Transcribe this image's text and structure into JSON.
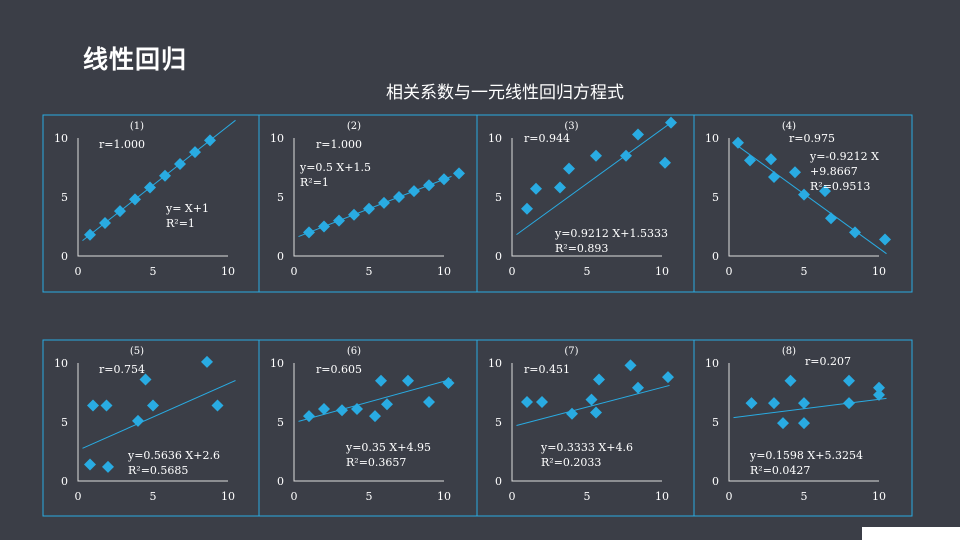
{
  "slide": {
    "title": "线性回归",
    "subtitle": "相关系数与一元线性回归方程式"
  },
  "colors": {
    "background": "#3b3e47",
    "accent": "#29abe2",
    "border": "#29abe2",
    "text": "#ffffff"
  },
  "chart_data": [
    {
      "type": "scatter",
      "label": "(1)",
      "xlim": [
        0,
        10
      ],
      "ylim": [
        0,
        10
      ],
      "xticks": [
        0,
        5,
        10
      ],
      "yticks": [
        0,
        5,
        10
      ],
      "r": "r=1.000",
      "equation": [
        "y= X+1",
        "R²=1"
      ],
      "line": {
        "slope": 1,
        "intercept": 1
      },
      "points": [
        [
          0.8,
          1.8
        ],
        [
          1.8,
          2.8
        ],
        [
          2.8,
          3.8
        ],
        [
          3.8,
          4.8
        ],
        [
          4.8,
          5.8
        ],
        [
          5.8,
          6.8
        ],
        [
          6.8,
          7.8
        ],
        [
          7.8,
          8.8
        ],
        [
          8.8,
          9.8
        ]
      ]
    },
    {
      "type": "scatter",
      "label": "(2)",
      "xlim": [
        0,
        10
      ],
      "ylim": [
        0,
        10
      ],
      "xticks": [
        0,
        5,
        10
      ],
      "yticks": [
        0,
        5,
        10
      ],
      "r": "r=1.000",
      "equation": [
        "y=0.5 X+1.5",
        "R²=1"
      ],
      "line": {
        "slope": 0.5,
        "intercept": 1.5
      },
      "points": [
        [
          1,
          2
        ],
        [
          2,
          2.5
        ],
        [
          3,
          3
        ],
        [
          4,
          3.5
        ],
        [
          5,
          4
        ],
        [
          6,
          4.5
        ],
        [
          7,
          5
        ],
        [
          8,
          5.5
        ],
        [
          9,
          6
        ],
        [
          10,
          6.5
        ],
        [
          11,
          7
        ]
      ]
    },
    {
      "type": "scatter",
      "label": "(3)",
      "xlim": [
        0,
        10
      ],
      "ylim": [
        0,
        10
      ],
      "xticks": [
        0,
        5,
        10
      ],
      "yticks": [
        0,
        5,
        10
      ],
      "r": "r=0.944",
      "equation": [
        "y=0.9212 X+1.5333",
        "R²=0.893"
      ],
      "line": {
        "slope": 0.9212,
        "intercept": 1.5333
      },
      "points": [
        [
          1,
          4
        ],
        [
          1.6,
          5.7
        ],
        [
          3.2,
          5.8
        ],
        [
          3.8,
          7.4
        ],
        [
          5.6,
          8.5
        ],
        [
          7.6,
          8.5
        ],
        [
          8.4,
          10.3
        ],
        [
          10.2,
          7.9
        ],
        [
          10.6,
          11.3
        ]
      ]
    },
    {
      "type": "scatter",
      "label": "(4)",
      "xlim": [
        0,
        10
      ],
      "ylim": [
        0,
        10
      ],
      "xticks": [
        0,
        5,
        10
      ],
      "yticks": [
        0,
        5,
        10
      ],
      "r": "r=0.975",
      "equation": [
        "y=-0.9212 X",
        "+9.8667",
        "R²=0.9513"
      ],
      "line": {
        "slope": -0.9212,
        "intercept": 9.8667
      },
      "points": [
        [
          0.6,
          9.6
        ],
        [
          1.4,
          8.1
        ],
        [
          2.8,
          8.2
        ],
        [
          3,
          6.7
        ],
        [
          4.4,
          7.1
        ],
        [
          5,
          5.2
        ],
        [
          6.4,
          5.5
        ],
        [
          6.8,
          3.2
        ],
        [
          8.4,
          2
        ],
        [
          10.4,
          1.4
        ]
      ]
    },
    {
      "type": "scatter",
      "label": "(5)",
      "xlim": [
        0,
        10
      ],
      "ylim": [
        0,
        10
      ],
      "xticks": [
        0,
        5,
        10
      ],
      "yticks": [
        0,
        5,
        10
      ],
      "r": "r=0.754",
      "equation": [
        "y=0.5636 X+2.6",
        "R²=0.5685"
      ],
      "line": {
        "slope": 0.5636,
        "intercept": 2.6
      },
      "points": [
        [
          0.8,
          1.4
        ],
        [
          1,
          6.4
        ],
        [
          1.9,
          6.4
        ],
        [
          2,
          1.2
        ],
        [
          4,
          5.1
        ],
        [
          4.5,
          8.6
        ],
        [
          5,
          6.4
        ],
        [
          8.6,
          10.1
        ],
        [
          9.3,
          6.4
        ]
      ]
    },
    {
      "type": "scatter",
      "label": "(6)",
      "xlim": [
        0,
        10
      ],
      "ylim": [
        0,
        10
      ],
      "xticks": [
        0,
        5,
        10
      ],
      "yticks": [
        0,
        5,
        10
      ],
      "r": "r=0.605",
      "equation": [
        "y=0.35 X+4.95",
        "R²=0.3657"
      ],
      "line": {
        "slope": 0.35,
        "intercept": 4.95
      },
      "points": [
        [
          1,
          5.5
        ],
        [
          2,
          6.1
        ],
        [
          3.2,
          6
        ],
        [
          4.2,
          6.1
        ],
        [
          5.4,
          5.5
        ],
        [
          5.8,
          8.5
        ],
        [
          6.2,
          6.5
        ],
        [
          7.6,
          8.5
        ],
        [
          9,
          6.7
        ],
        [
          10.3,
          8.3
        ]
      ]
    },
    {
      "type": "scatter",
      "label": "(7)",
      "xlim": [
        0,
        10
      ],
      "ylim": [
        0,
        10
      ],
      "xticks": [
        0,
        5,
        10
      ],
      "yticks": [
        0,
        5,
        10
      ],
      "r": "r=0.451",
      "equation": [
        "y=0.3333 X+4.6",
        "R²=0.2033"
      ],
      "line": {
        "slope": 0.3333,
        "intercept": 4.6
      },
      "points": [
        [
          1,
          6.7
        ],
        [
          2,
          6.7
        ],
        [
          4,
          5.7
        ],
        [
          5.3,
          6.9
        ],
        [
          5.6,
          5.8
        ],
        [
          5.8,
          8.6
        ],
        [
          7.9,
          9.8
        ],
        [
          8.4,
          7.9
        ],
        [
          10.4,
          8.8
        ]
      ]
    },
    {
      "type": "scatter",
      "label": "(8)",
      "xlim": [
        0,
        10
      ],
      "ylim": [
        0,
        10
      ],
      "xticks": [
        0,
        5,
        10
      ],
      "yticks": [
        0,
        5,
        10
      ],
      "r": "r=0.207",
      "equation": [
        "y=0.1598 X+5.3254",
        "R²=0.0427"
      ],
      "line": {
        "slope": 0.1598,
        "intercept": 5.3254
      },
      "points": [
        [
          1.5,
          6.6
        ],
        [
          3,
          6.6
        ],
        [
          3.6,
          4.9
        ],
        [
          4.1,
          8.5
        ],
        [
          5,
          6.6
        ],
        [
          5,
          4.9
        ],
        [
          8,
          8.5
        ],
        [
          8,
          6.6
        ],
        [
          10,
          7.9
        ],
        [
          10,
          7.3
        ]
      ]
    }
  ]
}
